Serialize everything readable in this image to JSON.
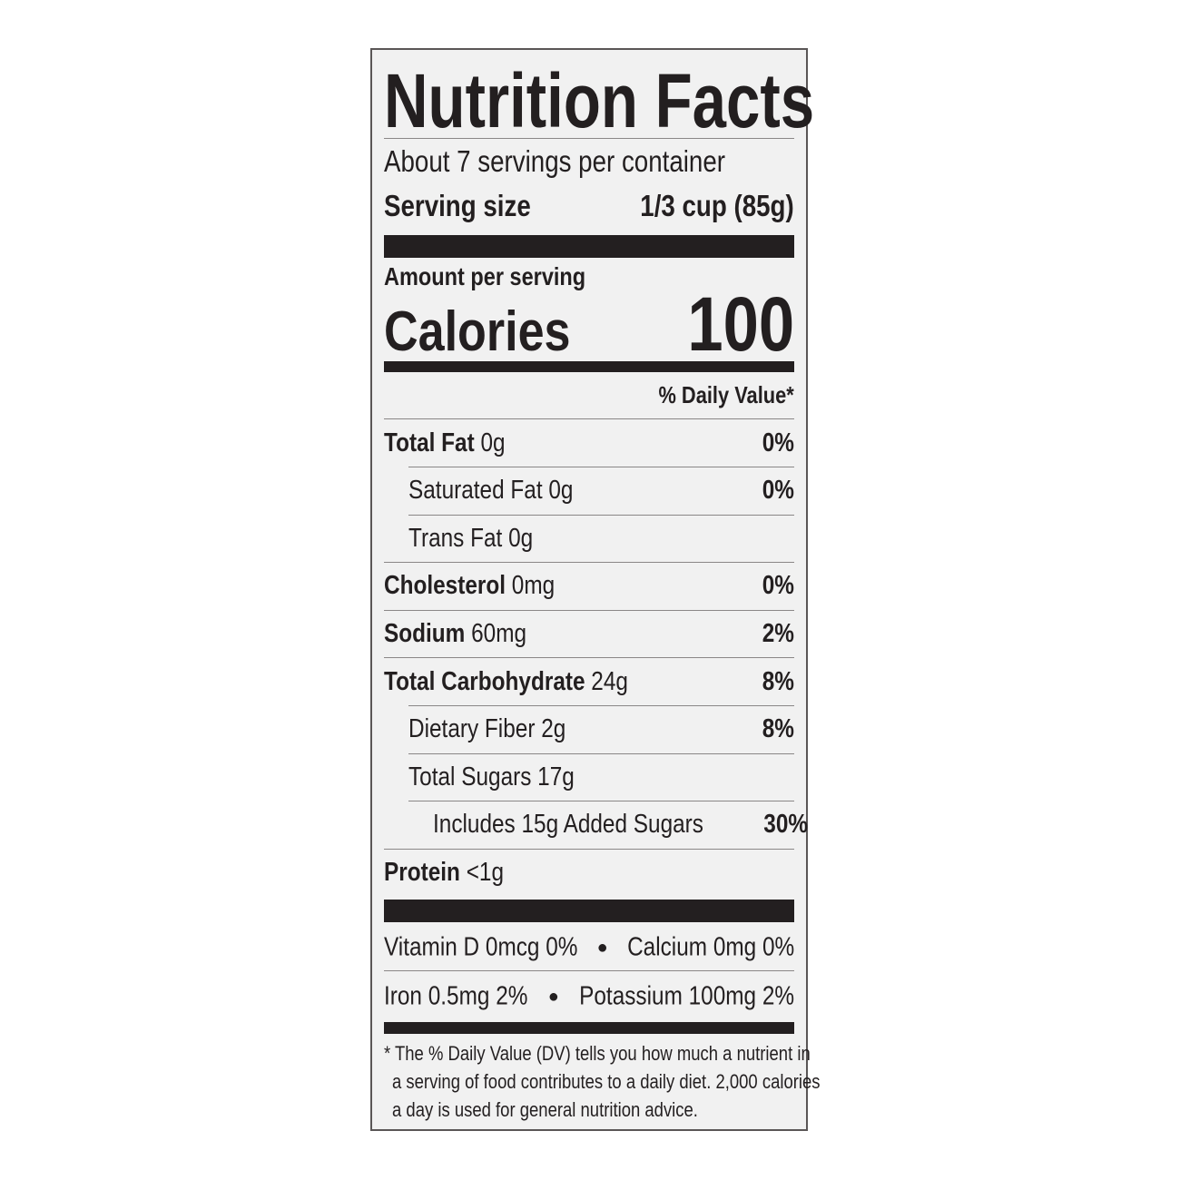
{
  "title": "Nutrition Facts",
  "servings_per_container": "About 7 servings per container",
  "serving_size": {
    "label": "Serving size",
    "value": "1/3 cup (85g)"
  },
  "amount_per_serving": "Amount per serving",
  "calories": {
    "label": "Calories",
    "value": "100"
  },
  "daily_value_header": "% Daily Value*",
  "nutrients": [
    {
      "name": "Total Fat",
      "amount": "0g",
      "dv": "0%",
      "bold": true,
      "indent": 0
    },
    {
      "name": "Saturated Fat",
      "amount": "0g",
      "dv": "0%",
      "bold": false,
      "indent": 1
    },
    {
      "name": "Trans Fat",
      "amount": "0g",
      "dv": "",
      "bold": false,
      "indent": 1
    },
    {
      "name": "Cholesterol",
      "amount": "0mg",
      "dv": "0%",
      "bold": true,
      "indent": 0
    },
    {
      "name": "Sodium",
      "amount": "60mg",
      "dv": "2%",
      "bold": true,
      "indent": 0
    },
    {
      "name": "Total Carbohydrate",
      "amount": "24g",
      "dv": "8%",
      "bold": true,
      "indent": 0
    },
    {
      "name": "Dietary Fiber",
      "amount": "2g",
      "dv": "8%",
      "bold": false,
      "indent": 1
    },
    {
      "name": "Total Sugars",
      "amount": "17g",
      "dv": "",
      "bold": false,
      "indent": 1
    },
    {
      "name": "Includes 15g Added Sugars",
      "amount": "",
      "dv": "30%",
      "bold": false,
      "indent": 2
    },
    {
      "name": "Protein",
      "amount": "<1g",
      "dv": "",
      "bold": true,
      "indent": 0
    }
  ],
  "vitamins": {
    "row1": {
      "left": "Vitamin D 0mcg 0%",
      "right": "Calcium 0mg 0%"
    },
    "row2": {
      "left": "Iron 0.5mg 2%",
      "right": "Potassium 100mg 2%"
    }
  },
  "footnote": [
    "* The % Daily Value (DV) tells you how much a nutrient in",
    "a serving of food contributes to a daily diet. 2,000 calories",
    "a day is used for general nutrition advice."
  ],
  "colors": {
    "ink": "#231f20",
    "background": "#f1f1f1"
  }
}
